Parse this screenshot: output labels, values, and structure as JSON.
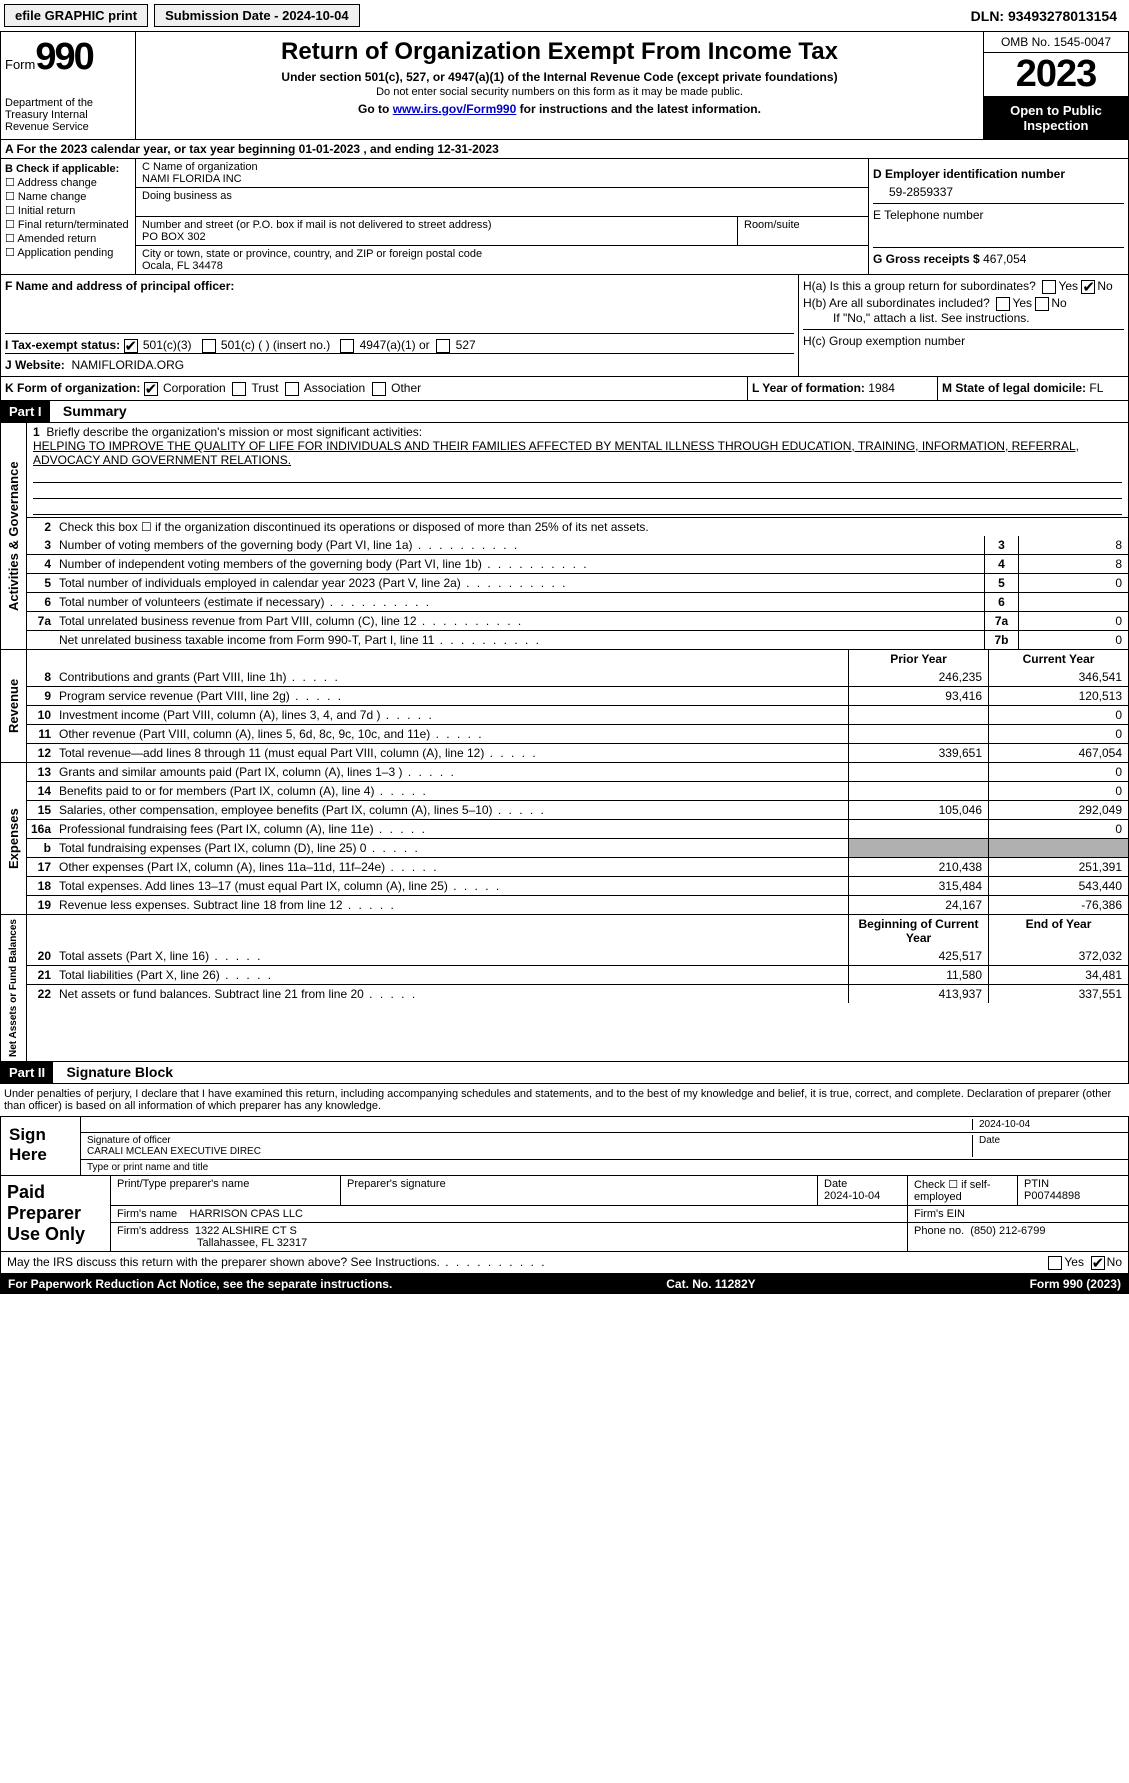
{
  "topbar": {
    "efile": "efile GRAPHIC print",
    "submission": "Submission Date - 2024-10-04",
    "dln": "DLN: 93493278013154"
  },
  "header": {
    "form_prefix": "Form",
    "form_num": "990",
    "dept": "Department of the Treasury\nInternal Revenue Service",
    "title": "Return of Organization Exempt From Income Tax",
    "subtitle": "Under section 501(c), 527, or 4947(a)(1) of the Internal Revenue Code (except private foundations)",
    "note": "Do not enter social security numbers on this form as it may be made public.",
    "goto_pre": "Go to ",
    "goto_link": "www.irs.gov/Form990",
    "goto_post": " for instructions and the latest information.",
    "omb": "OMB No. 1545-0047",
    "year": "2023",
    "open": "Open to Public Inspection"
  },
  "sectionA": {
    "text": "A  For the 2023 calendar year, or tax year beginning 01-01-2023    , and ending 12-31-2023"
  },
  "boxB": {
    "label": "B Check if applicable:",
    "opts": [
      "Address change",
      "Name change",
      "Initial return",
      "Final return/terminated",
      "Amended return",
      "Application pending"
    ]
  },
  "boxC": {
    "name_label": "C Name of organization",
    "name": "NAMI FLORIDA INC",
    "dba_label": "Doing business as",
    "addr_label": "Number and street (or P.O. box if mail is not delivered to street address)",
    "addr": "PO BOX 302",
    "room_label": "Room/suite",
    "city_label": "City or town, state or province, country, and ZIP or foreign postal code",
    "city": "Ocala, FL  34478"
  },
  "boxD": {
    "label": "D Employer identification number",
    "ein": "59-2859337",
    "tel_label": "E Telephone number",
    "gross_label": "G Gross receipts $",
    "gross": "467,054"
  },
  "boxF": {
    "label": "F  Name and address of principal officer:"
  },
  "boxH": {
    "ha": "H(a)  Is this a group return for subordinates?",
    "hb": "H(b)  Are all subordinates included?",
    "hb_note": "If \"No,\" attach a list. See instructions.",
    "hc": "H(c)  Group exemption number",
    "yes": "Yes",
    "no": "No"
  },
  "boxI": {
    "label": "I   Tax-exempt status:",
    "o1": "501(c)(3)",
    "o2": "501(c) (  ) (insert no.)",
    "o3": "4947(a)(1) or",
    "o4": "527"
  },
  "boxJ": {
    "label": "J   Website:",
    "val": "NAMIFLORIDA.ORG"
  },
  "boxK": {
    "label": "K Form of organization:",
    "o1": "Corporation",
    "o2": "Trust",
    "o3": "Association",
    "o4": "Other"
  },
  "boxL": {
    "label": "L Year of formation:",
    "val": "1984"
  },
  "boxM": {
    "label": "M State of legal domicile:",
    "val": "FL"
  },
  "part1": {
    "num": "Part I",
    "title": "Summary"
  },
  "vlabels": {
    "ag": "Activities & Governance",
    "rev": "Revenue",
    "exp": "Expenses",
    "na": "Net Assets or\nFund Balances"
  },
  "mission": {
    "num": "1",
    "label": "Briefly describe the organization's mission or most significant activities:",
    "text": "HELPING TO IMPROVE THE QUALITY OF LIFE FOR INDIVIDUALS AND THEIR FAMILIES AFFECTED BY MENTAL ILLNESS THROUGH EDUCATION, TRAINING, INFORMATION, REFERRAL, ADVOCACY AND GOVERNMENT RELATIONS."
  },
  "line2": {
    "num": "2",
    "text": "Check this box ☐ if the organization discontinued its operations or disposed of more than 25% of its net assets."
  },
  "govRows": [
    {
      "n": "3",
      "d": "Number of voting members of the governing body (Part VI, line 1a)",
      "b": "3",
      "v": "8"
    },
    {
      "n": "4",
      "d": "Number of independent voting members of the governing body (Part VI, line 1b)",
      "b": "4",
      "v": "8"
    },
    {
      "n": "5",
      "d": "Total number of individuals employed in calendar year 2023 (Part V, line 2a)",
      "b": "5",
      "v": "0"
    },
    {
      "n": "6",
      "d": "Total number of volunteers (estimate if necessary)",
      "b": "6",
      "v": ""
    },
    {
      "n": "7a",
      "d": "Total unrelated business revenue from Part VIII, column (C), line 12",
      "b": "7a",
      "v": "0"
    },
    {
      "n": "",
      "d": "Net unrelated business taxable income from Form 990-T, Part I, line 11",
      "b": "7b",
      "v": "0"
    }
  ],
  "pyHeader": {
    "prior": "Prior Year",
    "current": "Current Year"
  },
  "revRows": [
    {
      "n": "8",
      "d": "Contributions and grants (Part VIII, line 1h)",
      "p": "246,235",
      "c": "346,541"
    },
    {
      "n": "9",
      "d": "Program service revenue (Part VIII, line 2g)",
      "p": "93,416",
      "c": "120,513"
    },
    {
      "n": "10",
      "d": "Investment income (Part VIII, column (A), lines 3, 4, and 7d )",
      "p": "",
      "c": "0"
    },
    {
      "n": "11",
      "d": "Other revenue (Part VIII, column (A), lines 5, 6d, 8c, 9c, 10c, and 11e)",
      "p": "",
      "c": "0"
    },
    {
      "n": "12",
      "d": "Total revenue—add lines 8 through 11 (must equal Part VIII, column (A), line 12)",
      "p": "339,651",
      "c": "467,054"
    }
  ],
  "expRows": [
    {
      "n": "13",
      "d": "Grants and similar amounts paid (Part IX, column (A), lines 1–3 )",
      "p": "",
      "c": "0"
    },
    {
      "n": "14",
      "d": "Benefits paid to or for members (Part IX, column (A), line 4)",
      "p": "",
      "c": "0"
    },
    {
      "n": "15",
      "d": "Salaries, other compensation, employee benefits (Part IX, column (A), lines 5–10)",
      "p": "105,046",
      "c": "292,049"
    },
    {
      "n": "16a",
      "d": "Professional fundraising fees (Part IX, column (A), line 11e)",
      "p": "",
      "c": "0"
    },
    {
      "n": "b",
      "d": "Total fundraising expenses (Part IX, column (D), line 25) 0",
      "p": "SHADE",
      "c": "SHADE"
    },
    {
      "n": "17",
      "d": "Other expenses (Part IX, column (A), lines 11a–11d, 11f–24e)",
      "p": "210,438",
      "c": "251,391"
    },
    {
      "n": "18",
      "d": "Total expenses. Add lines 13–17 (must equal Part IX, column (A), line 25)",
      "p": "315,484",
      "c": "543,440"
    },
    {
      "n": "19",
      "d": "Revenue less expenses. Subtract line 18 from line 12",
      "p": "24,167",
      "c": "-76,386"
    }
  ],
  "naHeader": {
    "prior": "Beginning of Current Year",
    "current": "End of Year"
  },
  "naRows": [
    {
      "n": "20",
      "d": "Total assets (Part X, line 16)",
      "p": "425,517",
      "c": "372,032"
    },
    {
      "n": "21",
      "d": "Total liabilities (Part X, line 26)",
      "p": "11,580",
      "c": "34,481"
    },
    {
      "n": "22",
      "d": "Net assets or fund balances. Subtract line 21 from line 20",
      "p": "413,937",
      "c": "337,551"
    }
  ],
  "part2": {
    "num": "Part II",
    "title": "Signature Block"
  },
  "sig": {
    "declare": "Under penalties of perjury, I declare that I have examined this return, including accompanying schedules and statements, and to the best of my knowledge and belief, it is true, correct, and complete. Declaration of preparer (other than officer) is based on all information of which preparer has any knowledge.",
    "sign_here": "Sign Here",
    "date": "2024-10-04",
    "sig_label": "Signature of officer",
    "officer": "CARALI MCLEAN  EXECUTIVE DIREC",
    "name_label": "Type or print name and title",
    "date_label": "Date"
  },
  "prep": {
    "label": "Paid Preparer Use Only",
    "print_label": "Print/Type preparer's name",
    "sig_label": "Preparer's signature",
    "date_label": "Date",
    "date": "2024-10-04",
    "check_label": "Check ☐ if self-employed",
    "ptin_label": "PTIN",
    "ptin": "P00744898",
    "firm_name_label": "Firm's name",
    "firm_name": "HARRISON CPAS LLC",
    "firm_ein_label": "Firm's EIN",
    "firm_addr_label": "Firm's address",
    "firm_addr": "1322 ALSHIRE CT S",
    "firm_city": "Tallahassee, FL  32317",
    "phone_label": "Phone no.",
    "phone": "(850) 212-6799"
  },
  "footer": {
    "discuss": "May the IRS discuss this return with the preparer shown above? See Instructions.",
    "yes": "Yes",
    "no": "No",
    "paperwork": "For Paperwork Reduction Act Notice, see the separate instructions.",
    "cat": "Cat. No. 11282Y",
    "form": "Form 990 (2023)"
  }
}
